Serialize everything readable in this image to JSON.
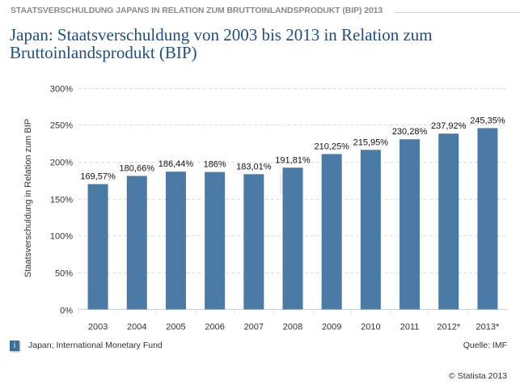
{
  "header": {
    "kicker": "STAATSVERSCHULDUNG JAPANS IN RELATION ZUM BRUTTOINLANDSPRODUKT (BIP) 2013",
    "title": "Japan: Staatsverschuldung von 2003 bis 2013 in Relation zum Bruttoinlandsprodukt (BIP)"
  },
  "chart_data": {
    "type": "bar",
    "categories": [
      "2003",
      "2004",
      "2005",
      "2006",
      "2007",
      "2008",
      "2009",
      "2010",
      "2011",
      "2012*",
      "2013*"
    ],
    "values": [
      169.57,
      180.66,
      186.44,
      186,
      183.01,
      191.81,
      210.25,
      215.95,
      230.28,
      237.92,
      245.35
    ],
    "data_labels": [
      "169,57%",
      "180,66%",
      "186,44%",
      "186%",
      "183,01%",
      "191,81%",
      "210,25%",
      "215,95%",
      "230,28%",
      "237,92%",
      "245,35%"
    ],
    "ylabel": "Staatsverschuldung in Relation zum BIP",
    "ylim": [
      0,
      300
    ],
    "yticks": [
      "0%",
      "50%",
      "100%",
      "150%",
      "200%",
      "250%",
      "300%"
    ],
    "grid": true,
    "bar_color": "#4a7aa5"
  },
  "watermark": "statista",
  "footer": {
    "info_icon": "i",
    "source_note": "Japan; International Monetary Fund",
    "quelle": "Quelle: IMF",
    "copyright": "© Statista 2013"
  }
}
